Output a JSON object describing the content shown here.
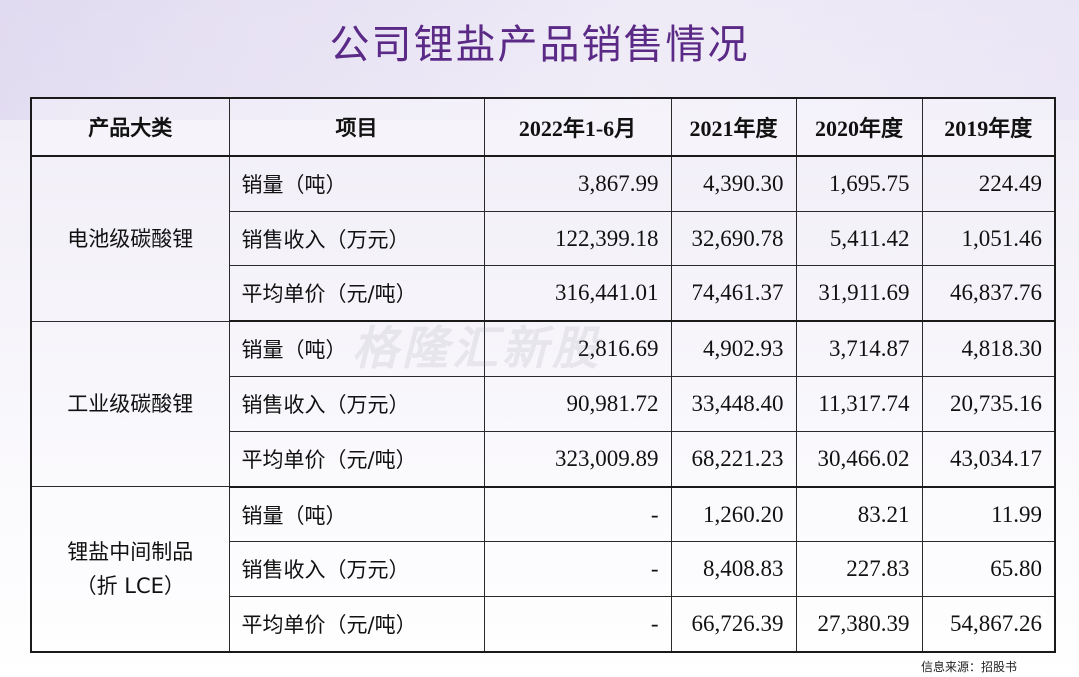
{
  "title": "公司锂盐产品销售情况",
  "watermark": "格隆汇新股",
  "source": "信息来源：招股书",
  "table": {
    "headers": [
      "产品大类",
      "项目",
      "2022年1-6月",
      "2021年度",
      "2020年度",
      "2019年度"
    ],
    "groups": [
      {
        "category": "电池级碳酸锂",
        "rows": [
          {
            "item": "销量（吨）",
            "values": [
              "3,867.99",
              "4,390.30",
              "1,695.75",
              "224.49"
            ]
          },
          {
            "item": "销售收入（万元）",
            "values": [
              "122,399.18",
              "32,690.78",
              "5,411.42",
              "1,051.46"
            ]
          },
          {
            "item": "平均单价（元/吨）",
            "values": [
              "316,441.01",
              "74,461.37",
              "31,911.69",
              "46,837.76"
            ]
          }
        ]
      },
      {
        "category": "工业级碳酸锂",
        "rows": [
          {
            "item": "销量（吨）",
            "values": [
              "2,816.69",
              "4,902.93",
              "3,714.87",
              "4,818.30"
            ]
          },
          {
            "item": "销售收入（万元）",
            "values": [
              "90,981.72",
              "33,448.40",
              "11,317.74",
              "20,735.16"
            ]
          },
          {
            "item": "平均单价（元/吨）",
            "values": [
              "323,009.89",
              "68,221.23",
              "30,466.02",
              "43,034.17"
            ]
          }
        ]
      },
      {
        "category_line1": "锂盐中间制品",
        "category_line2": "（折 LCE）",
        "rows": [
          {
            "item": "销量（吨）",
            "values": [
              "-",
              "1,260.20",
              "83.21",
              "11.99"
            ]
          },
          {
            "item": "销售收入（万元）",
            "values": [
              "-",
              "8,408.83",
              "227.83",
              "65.80"
            ]
          },
          {
            "item": "平均单价（元/吨）",
            "values": [
              "-",
              "66,726.39",
              "27,380.39",
              "54,867.26"
            ]
          }
        ]
      }
    ]
  }
}
